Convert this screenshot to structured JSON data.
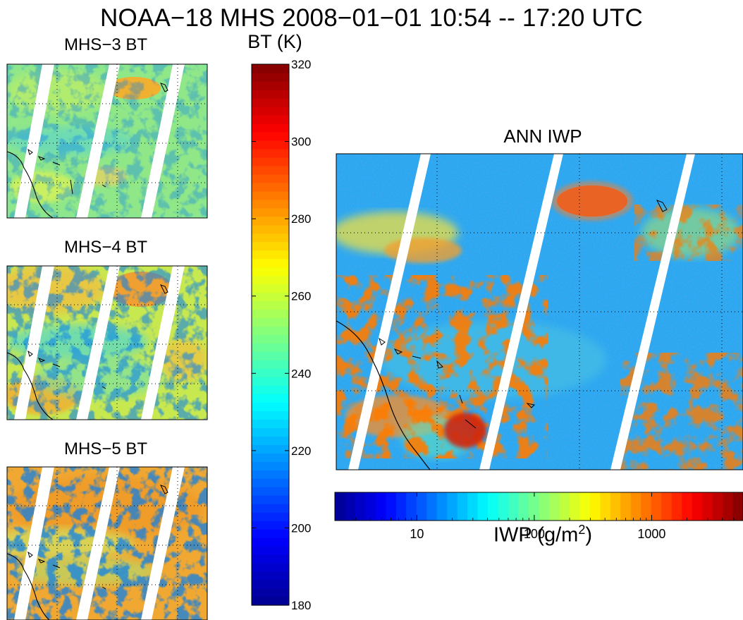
{
  "title": "NOAA−18 MHS 2008−01−01 10:54 -- 17:20 UTC",
  "panels": {
    "mhs3": {
      "title": "MHS−3 BT"
    },
    "mhs4": {
      "title": "MHS−4 BT"
    },
    "mhs5": {
      "title": "MHS−5 BT"
    },
    "iwp": {
      "title": "ANN IWP"
    }
  },
  "bt_colorbar": {
    "label": "BT (K)",
    "range": [
      180,
      320
    ],
    "ticks": [
      "320",
      "300",
      "280",
      "260",
      "240",
      "220",
      "200",
      "180"
    ]
  },
  "iwp_colorbar": {
    "label": "IWP (g/m",
    "label_sup": "2",
    "label_close": ")",
    "scale": "log",
    "range": [
      2,
      6000
    ],
    "ticks": [
      "10",
      "100",
      "1000"
    ]
  },
  "chart_data": [
    {
      "type": "heatmap",
      "title": "MHS−3 BT",
      "colorbar_label": "BT (K)",
      "colorbar_range": [
        180,
        320
      ],
      "colormap": "jet",
      "typical_range": [
        230,
        275
      ]
    },
    {
      "type": "heatmap",
      "title": "MHS−4 BT",
      "colorbar_label": "BT (K)",
      "colorbar_range": [
        180,
        320
      ],
      "colormap": "jet",
      "typical_range": [
        215,
        280
      ]
    },
    {
      "type": "heatmap",
      "title": "MHS−5 BT",
      "colorbar_label": "BT (K)",
      "colorbar_range": [
        180,
        320
      ],
      "colormap": "jet",
      "typical_range": [
        200,
        285
      ]
    },
    {
      "type": "heatmap",
      "title": "ANN IWP",
      "colorbar_label": "IWP (g/m2)",
      "colorbar_scale": "log",
      "colorbar_ticks": [
        10,
        100,
        1000
      ],
      "colormap": "jet",
      "grid": true
    }
  ],
  "colors": {
    "jet": [
      "#00008f",
      "#0000ff",
      "#0080ff",
      "#00ffff",
      "#80ff80",
      "#ffff00",
      "#ff8000",
      "#ff0000",
      "#800000"
    ]
  }
}
